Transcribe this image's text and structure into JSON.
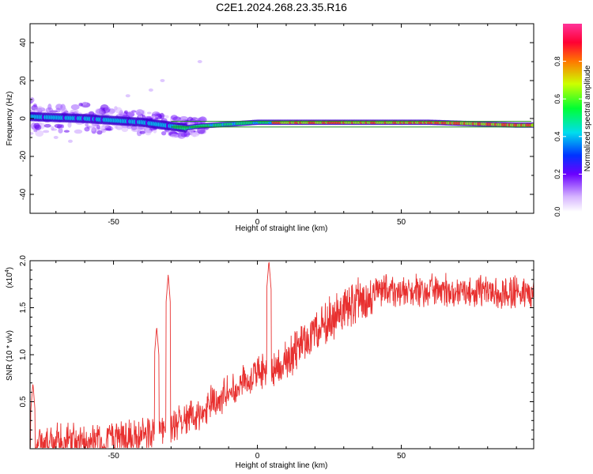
{
  "title": "C2E1.2024.268.23.35.R16",
  "chart_data": [
    {
      "type": "heatmap",
      "xlabel": "Height of straight line (km)",
      "ylabel": "Frequency (Hz)",
      "xlim": [
        -79,
        96
      ],
      "ylim": [
        -50,
        50
      ],
      "xticks": [
        -50,
        0,
        50
      ],
      "yticks": [
        -40,
        -20,
        0,
        20,
        40
      ],
      "colorbar": {
        "label": "Normalized spectral amplitude",
        "range": [
          0,
          1
        ],
        "ticks": [
          "0.0",
          "0.2",
          "0.4",
          "0.6",
          "0.8"
        ]
      },
      "reference_lines_hz": [
        -1.5,
        -4.5
      ],
      "spectral_ridge": {
        "x": [
          -79,
          -70,
          -60,
          -50,
          -40,
          -30,
          -25,
          -20,
          -10,
          0,
          10,
          20,
          30,
          40,
          50,
          60,
          70,
          80,
          90,
          96
        ],
        "freq_hz": [
          1,
          0.5,
          0,
          -1,
          -2,
          -4,
          -5,
          -4,
          -3,
          -2,
          -2,
          -2,
          -2,
          -2,
          -2,
          -2,
          -2.5,
          -3,
          -3.5,
          -3.5
        ]
      }
    },
    {
      "type": "line",
      "xlabel": "Height of straight line (km)",
      "ylabel": "SNR (10 * v/v)",
      "y_multiplier": "(x10^4)",
      "xlim": [
        -79,
        96
      ],
      "ylim": [
        0,
        2.0
      ],
      "xticks": [
        -50,
        0,
        50
      ],
      "yticks": [
        "0.5",
        "1.0",
        "1.5",
        "2.0"
      ],
      "color": "#e8302f",
      "trend": {
        "x": [
          -79,
          -70,
          -60,
          -50,
          -45,
          -40,
          -35,
          -30,
          -25,
          -20,
          -15,
          -10,
          -5,
          0,
          5,
          10,
          15,
          20,
          25,
          30,
          35,
          40,
          50,
          60,
          70,
          80,
          90,
          96
        ],
        "y": [
          0.2,
          0.25,
          0.22,
          0.25,
          0.28,
          0.3,
          0.35,
          0.4,
          0.45,
          0.55,
          0.65,
          0.75,
          0.85,
          0.95,
          1.0,
          1.1,
          1.3,
          1.45,
          1.6,
          1.7,
          1.78,
          1.8,
          1.82,
          1.83,
          1.8,
          1.82,
          1.8,
          1.75
        ]
      },
      "peaks": [
        {
          "x": -31,
          "y": 1.85
        },
        {
          "x": -35,
          "y": 1.3
        },
        {
          "x": 4,
          "y": 2.0
        },
        {
          "x": -78,
          "y": 0.7
        }
      ]
    }
  ]
}
